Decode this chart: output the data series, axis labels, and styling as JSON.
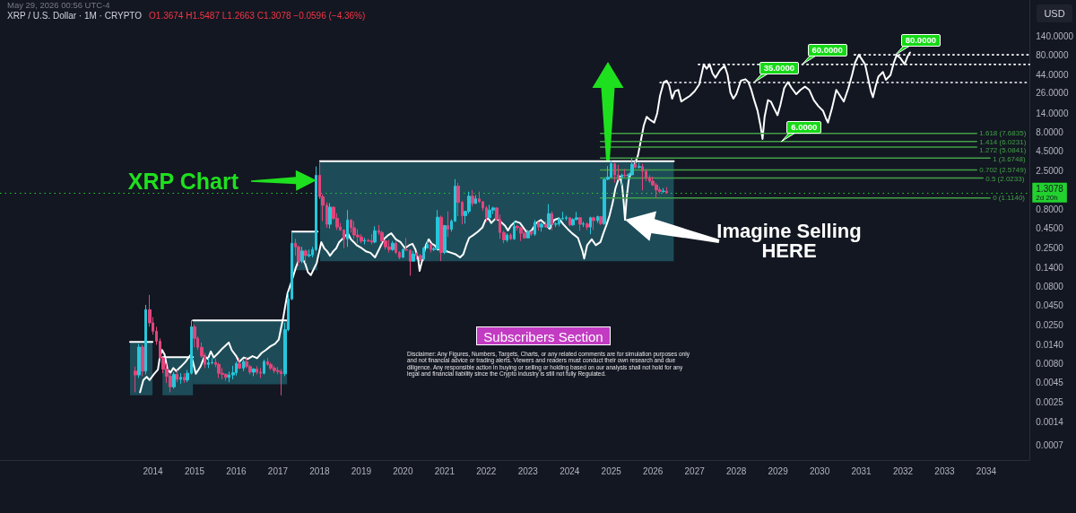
{
  "chart_data": {
    "type": "candlestick",
    "title": "XRP / U.S. Dollar · 1M · CRYPTO",
    "subtitle": "O1.3674 H1.5487 L1.2663 C1.3078 −0.0596 (−4.36%)",
    "ylabel": "USD",
    "x": [
      2013.58,
      2013.67,
      2013.75,
      2013.83,
      2013.92,
      2014.0,
      2014.08,
      2014.17,
      2014.25,
      2014.33,
      2014.42,
      2014.5,
      2014.58,
      2014.67,
      2014.75,
      2014.83,
      2014.92,
      2015.0,
      2015.08,
      2015.17,
      2015.25,
      2015.33,
      2015.42,
      2015.5,
      2015.58,
      2015.67,
      2015.75,
      2015.83,
      2015.92,
      2016.0,
      2016.08,
      2016.17,
      2016.25,
      2016.33,
      2016.42,
      2016.5,
      2016.58,
      2016.67,
      2016.75,
      2016.83,
      2016.92,
      2017.0,
      2017.08,
      2017.17,
      2017.25,
      2017.33,
      2017.42,
      2017.5,
      2017.58,
      2017.67,
      2017.75,
      2017.83,
      2017.92,
      2018.0,
      2018.08,
      2018.17,
      2018.25,
      2018.33,
      2018.42,
      2018.5,
      2018.58,
      2018.67,
      2018.75,
      2018.83,
      2018.92,
      2019.0,
      2019.08,
      2019.17,
      2019.25,
      2019.33,
      2019.42,
      2019.5,
      2019.58,
      2019.67,
      2019.75,
      2019.83,
      2019.92,
      2020.0,
      2020.08,
      2020.17,
      2020.25,
      2020.33,
      2020.42,
      2020.5,
      2020.58,
      2020.67,
      2020.75,
      2020.83,
      2020.92,
      2021.0,
      2021.08,
      2021.17,
      2021.25,
      2021.33,
      2021.42,
      2021.5,
      2021.58,
      2021.67,
      2021.75,
      2021.83,
      2021.92,
      2022.0,
      2022.08,
      2022.17,
      2022.25,
      2022.33,
      2022.42,
      2022.5,
      2022.58,
      2022.67,
      2022.75,
      2022.83,
      2022.92,
      2023.0,
      2023.08,
      2023.17,
      2023.25,
      2023.33,
      2023.42,
      2023.5,
      2023.58,
      2023.67,
      2023.75,
      2023.83,
      2023.92,
      2024.0,
      2024.08,
      2024.17,
      2024.25,
      2024.33,
      2024.42,
      2024.5,
      2024.58,
      2024.67,
      2024.75,
      2024.83,
      2024.92,
      2025.0,
      2025.08,
      2025.17,
      2025.25,
      2025.33,
      2025.42,
      2025.5,
      2025.58,
      2025.67,
      2025.75,
      2025.83,
      2025.92,
      2026.0,
      2026.08,
      2026.17,
      2026.25,
      2026.33
    ],
    "ohlc": [
      [
        0.0064,
        0.0073,
        0.0034,
        0.0057
      ],
      [
        0.0057,
        0.0144,
        0.0052,
        0.0131
      ],
      [
        0.0131,
        0.014,
        0.0055,
        0.0064
      ],
      [
        0.0064,
        0.046,
        0.0058,
        0.04
      ],
      [
        0.04,
        0.062,
        0.024,
        0.027
      ],
      [
        0.027,
        0.032,
        0.019,
        0.021
      ],
      [
        0.021,
        0.024,
        0.014,
        0.0156
      ],
      [
        0.0156,
        0.017,
        0.0092,
        0.0095
      ],
      [
        0.0095,
        0.0097,
        0.006,
        0.0068
      ],
      [
        0.0068,
        0.008,
        0.0045,
        0.0055
      ],
      [
        0.0055,
        0.006,
        0.0034,
        0.004
      ],
      [
        0.004,
        0.0062,
        0.0038,
        0.0058
      ],
      [
        0.0058,
        0.0066,
        0.0046,
        0.005
      ],
      [
        0.005,
        0.006,
        0.0044,
        0.0053
      ],
      [
        0.0053,
        0.006,
        0.0045,
        0.0049
      ],
      [
        0.0049,
        0.0066,
        0.0046,
        0.006
      ],
      [
        0.006,
        0.029,
        0.0058,
        0.024
      ],
      [
        0.024,
        0.0256,
        0.013,
        0.017
      ],
      [
        0.017,
        0.018,
        0.012,
        0.013
      ],
      [
        0.013,
        0.015,
        0.0095,
        0.01
      ],
      [
        0.01,
        0.011,
        0.007,
        0.0078
      ],
      [
        0.0078,
        0.0095,
        0.007,
        0.0082
      ],
      [
        0.0082,
        0.0094,
        0.0078,
        0.0083
      ],
      [
        0.0083,
        0.0093,
        0.0072,
        0.0078
      ],
      [
        0.0078,
        0.0082,
        0.0052,
        0.006
      ],
      [
        0.006,
        0.007,
        0.005,
        0.0058
      ],
      [
        0.0058,
        0.006,
        0.0048,
        0.0053
      ],
      [
        0.0053,
        0.0063,
        0.0046,
        0.0057
      ],
      [
        0.0057,
        0.0075,
        0.005,
        0.0061
      ],
      [
        0.0061,
        0.0085,
        0.0056,
        0.008
      ],
      [
        0.008,
        0.0095,
        0.0068,
        0.007
      ],
      [
        0.007,
        0.009,
        0.0064,
        0.0085
      ],
      [
        0.0085,
        0.0095,
        0.007,
        0.0073
      ],
      [
        0.0073,
        0.0077,
        0.0058,
        0.0062
      ],
      [
        0.0062,
        0.007,
        0.0055,
        0.0068
      ],
      [
        0.0068,
        0.0074,
        0.0058,
        0.0062
      ],
      [
        0.0062,
        0.007,
        0.0052,
        0.006
      ],
      [
        0.006,
        0.009,
        0.0058,
        0.0085
      ],
      [
        0.0085,
        0.0095,
        0.0075,
        0.0078
      ],
      [
        0.0078,
        0.0082,
        0.0066,
        0.007
      ],
      [
        0.007,
        0.0075,
        0.006,
        0.0065
      ],
      [
        0.0065,
        0.0072,
        0.0058,
        0.0063
      ],
      [
        0.0063,
        0.0068,
        0.0031,
        0.0059
      ],
      [
        0.0059,
        0.027,
        0.0055,
        0.022
      ],
      [
        0.022,
        0.067,
        0.021,
        0.055
      ],
      [
        0.055,
        0.41,
        0.053,
        0.29
      ],
      [
        0.29,
        0.33,
        0.2,
        0.26
      ],
      [
        0.26,
        0.27,
        0.15,
        0.17
      ],
      [
        0.17,
        0.26,
        0.16,
        0.23
      ],
      [
        0.23,
        0.24,
        0.16,
        0.2
      ],
      [
        0.2,
        0.24,
        0.19,
        0.205
      ],
      [
        0.205,
        0.26,
        0.19,
        0.24
      ],
      [
        0.24,
        2.86,
        0.23,
        2.2
      ],
      [
        2.2,
        3.31,
        1.08,
        1.16
      ],
      [
        1.16,
        1.25,
        0.56,
        0.9
      ],
      [
        0.9,
        0.98,
        0.46,
        0.51
      ],
      [
        0.51,
        0.96,
        0.45,
        0.85
      ],
      [
        0.85,
        0.87,
        0.58,
        0.61
      ],
      [
        0.61,
        0.71,
        0.43,
        0.47
      ],
      [
        0.47,
        0.53,
        0.42,
        0.43
      ],
      [
        0.43,
        0.44,
        0.25,
        0.33
      ],
      [
        0.33,
        0.78,
        0.26,
        0.58
      ],
      [
        0.58,
        0.59,
        0.4,
        0.46
      ],
      [
        0.46,
        0.56,
        0.33,
        0.37
      ],
      [
        0.37,
        0.44,
        0.29,
        0.35
      ],
      [
        0.35,
        0.38,
        0.29,
        0.31
      ],
      [
        0.31,
        0.34,
        0.28,
        0.315
      ],
      [
        0.315,
        0.33,
        0.3,
        0.31
      ],
      [
        0.31,
        0.38,
        0.28,
        0.3
      ],
      [
        0.3,
        0.48,
        0.29,
        0.42
      ],
      [
        0.42,
        0.5,
        0.37,
        0.4
      ],
      [
        0.4,
        0.42,
        0.29,
        0.31
      ],
      [
        0.31,
        0.33,
        0.24,
        0.26
      ],
      [
        0.26,
        0.32,
        0.22,
        0.24
      ],
      [
        0.24,
        0.31,
        0.23,
        0.29
      ],
      [
        0.29,
        0.31,
        0.21,
        0.22
      ],
      [
        0.22,
        0.23,
        0.18,
        0.19
      ],
      [
        0.19,
        0.25,
        0.19,
        0.24
      ],
      [
        0.24,
        0.34,
        0.23,
        0.235
      ],
      [
        0.235,
        0.24,
        0.11,
        0.17
      ],
      [
        0.17,
        0.23,
        0.17,
        0.21
      ],
      [
        0.21,
        0.22,
        0.18,
        0.2
      ],
      [
        0.2,
        0.21,
        0.17,
        0.18
      ],
      [
        0.18,
        0.26,
        0.17,
        0.25
      ],
      [
        0.25,
        0.32,
        0.25,
        0.28
      ],
      [
        0.28,
        0.29,
        0.22,
        0.24
      ],
      [
        0.24,
        0.26,
        0.23,
        0.245
      ],
      [
        0.245,
        0.78,
        0.24,
        0.63
      ],
      [
        0.63,
        0.66,
        0.17,
        0.22
      ],
      [
        0.22,
        0.5,
        0.21,
        0.49
      ],
      [
        0.49,
        0.75,
        0.35,
        0.44
      ],
      [
        0.44,
        0.59,
        0.41,
        0.56
      ],
      [
        0.56,
        1.96,
        0.55,
        1.59
      ],
      [
        1.59,
        1.75,
        0.65,
        0.98
      ],
      [
        0.98,
        1.03,
        0.51,
        0.66
      ],
      [
        0.66,
        0.76,
        0.52,
        0.75
      ],
      [
        0.75,
        1.35,
        0.7,
        1.18
      ],
      [
        1.18,
        1.41,
        0.87,
        0.95
      ],
      [
        0.95,
        1.22,
        0.94,
        1.09
      ],
      [
        1.09,
        1.35,
        0.96,
        1.0
      ],
      [
        1.0,
        1.02,
        0.76,
        0.83
      ],
      [
        0.83,
        0.88,
        0.55,
        0.62
      ],
      [
        0.62,
        0.91,
        0.6,
        0.78
      ],
      [
        0.78,
        0.86,
        0.69,
        0.83
      ],
      [
        0.83,
        0.84,
        0.58,
        0.59
      ],
      [
        0.59,
        0.68,
        0.33,
        0.4
      ],
      [
        0.4,
        0.42,
        0.29,
        0.32
      ],
      [
        0.32,
        0.39,
        0.3,
        0.37
      ],
      [
        0.37,
        0.39,
        0.32,
        0.33
      ],
      [
        0.33,
        0.56,
        0.32,
        0.48
      ],
      [
        0.48,
        0.5,
        0.42,
        0.46
      ],
      [
        0.46,
        0.47,
        0.31,
        0.39
      ],
      [
        0.39,
        0.41,
        0.33,
        0.34
      ],
      [
        0.34,
        0.43,
        0.34,
        0.41
      ],
      [
        0.41,
        0.42,
        0.36,
        0.38
      ],
      [
        0.38,
        0.58,
        0.36,
        0.54
      ],
      [
        0.54,
        0.55,
        0.42,
        0.47
      ],
      [
        0.47,
        0.54,
        0.41,
        0.51
      ],
      [
        0.51,
        0.56,
        0.46,
        0.47
      ],
      [
        0.47,
        0.93,
        0.46,
        0.7
      ],
      [
        0.7,
        0.75,
        0.43,
        0.51
      ],
      [
        0.51,
        0.54,
        0.47,
        0.515
      ],
      [
        0.515,
        0.62,
        0.48,
        0.6
      ],
      [
        0.6,
        0.74,
        0.58,
        0.61
      ],
      [
        0.61,
        0.66,
        0.57,
        0.62
      ],
      [
        0.62,
        0.63,
        0.48,
        0.5
      ],
      [
        0.5,
        0.61,
        0.49,
        0.59
      ],
      [
        0.59,
        0.74,
        0.57,
        0.62
      ],
      [
        0.62,
        0.63,
        0.42,
        0.51
      ],
      [
        0.51,
        0.55,
        0.47,
        0.515
      ],
      [
        0.515,
        0.54,
        0.43,
        0.47
      ],
      [
        0.47,
        0.64,
        0.38,
        0.62
      ],
      [
        0.62,
        0.64,
        0.43,
        0.57
      ],
      [
        0.57,
        0.66,
        0.53,
        0.64
      ],
      [
        0.64,
        0.64,
        0.5,
        0.52
      ],
      [
        0.52,
        1.97,
        0.5,
        1.95
      ],
      [
        1.95,
        2.9,
        1.9,
        2.08
      ],
      [
        2.08,
        3.4,
        2.05,
        3.1
      ],
      [
        3.1,
        3.2,
        1.77,
        2.22
      ],
      [
        2.22,
        3.0,
        1.9,
        2.09
      ],
      [
        2.09,
        2.3,
        1.61,
        2.21
      ],
      [
        2.21,
        2.65,
        2.08,
        2.17
      ],
      [
        2.17,
        2.34,
        1.9,
        2.23
      ],
      [
        2.23,
        3.67,
        2.2,
        3.06
      ],
      [
        3.06,
        3.38,
        2.7,
        2.8
      ],
      [
        2.8,
        3.18,
        2.69,
        2.85
      ],
      [
        2.85,
        3.1,
        1.4,
        2.48
      ],
      [
        2.48,
        2.65,
        1.85,
        2.05
      ],
      [
        2.05,
        2.2,
        1.75,
        1.85
      ],
      [
        1.85,
        2.1,
        1.6,
        1.65
      ],
      [
        1.65,
        1.75,
        1.114,
        1.42
      ],
      [
        1.42,
        1.55,
        1.28,
        1.36
      ],
      [
        1.36,
        1.5,
        1.3,
        1.3674
      ],
      [
        1.3674,
        1.5487,
        1.2663,
        1.3078
      ]
    ],
    "colors": [
      "#e0457b",
      "#26c6da",
      "#e0457b",
      "#26c6da",
      "#e0457b",
      "#e0457b",
      "#e0457b",
      "#e0457b",
      "#e0457b",
      "#e0457b",
      "#e0457b",
      "#26c6da",
      "#e0457b",
      "#26c6da",
      "#e0457b",
      "#26c6da",
      "#26c6da",
      "#e0457b",
      "#e0457b",
      "#e0457b",
      "#e0457b",
      "#26c6da",
      "#26c6da",
      "#e0457b",
      "#e0457b",
      "#e0457b",
      "#e0457b",
      "#26c6da",
      "#26c6da",
      "#26c6da",
      "#e0457b",
      "#26c6da",
      "#e0457b",
      "#e0457b",
      "#26c6da",
      "#e0457b",
      "#e0457b",
      "#26c6da",
      "#e0457b",
      "#e0457b",
      "#e0457b",
      "#e0457b",
      "#e0457b",
      "#26c6da",
      "#26c6da",
      "#26c6da",
      "#e0457b",
      "#e0457b",
      "#26c6da",
      "#e0457b",
      "#26c6da",
      "#26c6da",
      "#26c6da",
      "#e0457b",
      "#e0457b",
      "#e0457b",
      "#26c6da",
      "#e0457b",
      "#e0457b",
      "#e0457b",
      "#e0457b",
      "#26c6da",
      "#e0457b",
      "#e0457b",
      "#e0457b",
      "#e0457b",
      "#26c6da",
      "#e0457b",
      "#e0457b",
      "#26c6da",
      "#e0457b",
      "#e0457b",
      "#e0457b",
      "#e0457b",
      "#26c6da",
      "#e0457b",
      "#e0457b",
      "#26c6da",
      "#e0457b",
      "#e0457b",
      "#26c6da",
      "#e0457b",
      "#e0457b",
      "#26c6da",
      "#26c6da",
      "#e0457b",
      "#26c6da",
      "#26c6da",
      "#e0457b",
      "#26c6da",
      "#e0457b",
      "#26c6da",
      "#26c6da",
      "#e0457b",
      "#e0457b",
      "#26c6da",
      "#26c6da",
      "#e0457b",
      "#26c6da",
      "#e0457b",
      "#e0457b",
      "#e0457b",
      "#26c6da",
      "#26c6da",
      "#e0457b",
      "#e0457b",
      "#e0457b",
      "#26c6da",
      "#e0457b",
      "#26c6da",
      "#e0457b",
      "#e0457b",
      "#e0457b",
      "#26c6da",
      "#e0457b",
      "#26c6da",
      "#e0457b",
      "#26c6da",
      "#e0457b",
      "#26c6da",
      "#e0457b",
      "#26c6da",
      "#26c6da",
      "#26c6da",
      "#26c6da",
      "#e0457b",
      "#26c6da",
      "#26c6da",
      "#e0457b",
      "#26c6da",
      "#e0457b",
      "#26c6da",
      "#e0457b",
      "#26c6da",
      "#e0457b",
      "#26c6da",
      "#26c6da",
      "#26c6da",
      "#e0457b",
      "#e0457b",
      "#26c6da",
      "#e0457b",
      "#26c6da",
      "#26c6da",
      "#e0457b",
      "#26c6da",
      "#e0457b",
      "#e0457b",
      "#e0457b",
      "#e0457b",
      "#e0457b",
      "#e0457b",
      "#26c6da",
      "#e0457b"
    ],
    "series": [
      {
        "type": "line",
        "color": "#ffffff",
        "x": [
          2013.45,
          2013.99
        ],
        "values": [
          0.0153,
          0.0153
        ],
        "lower": [
          0.0031,
          0.0031
        ],
        "upper": [
          0.0153,
          0.0153
        ]
      },
      {
        "type": "line",
        "color": "#ffffff",
        "x": [
          2014.23,
          2014.96
        ],
        "values": [
          0.0097,
          0.0097
        ],
        "lower": [
          0.0031,
          0.0031
        ],
        "upper": [
          0.0097,
          0.0097
        ]
      },
      {
        "type": "line",
        "color": "#ffffff",
        "x": [
          2014.96,
          2017.22
        ],
        "values": [
          0.029,
          0.029
        ],
        "lower": [
          0.0043,
          0.0043
        ],
        "upper": [
          0.029,
          0.029
        ]
      },
      {
        "type": "line",
        "color": "#ffffff",
        "x": [
          2017.34,
          2017.95
        ],
        "values": [
          0.41,
          0.41
        ],
        "lower": [
          0.13,
          0.13
        ],
        "upper": [
          0.41,
          0.41
        ]
      },
      {
        "type": "line",
        "color": "#ffffff",
        "x": [
          2018.01,
          2026.5
        ],
        "values": [
          3.35,
          3.35
        ],
        "lower": [
          0.17,
          0.17
        ],
        "upper": [
          3.35,
          3.35
        ]
      },
      {
        "type": "line",
        "color": "#ffffff",
        "x": [
          2013.69,
          2013.77,
          2013.85,
          2013.92,
          2014.03,
          2014.12,
          2014.17,
          2014.22,
          2014.28,
          2014.35,
          2014.42,
          2014.49,
          2014.56,
          2014.67,
          2014.78,
          2014.91,
          2014.96,
          2015.03,
          2015.14,
          2015.24,
          2015.32,
          2015.39,
          2015.46,
          2015.57,
          2015.67,
          2015.82,
          2015.89,
          2016.0,
          2016.07,
          2016.18,
          2016.28,
          2016.39,
          2016.5,
          2016.61,
          2016.71,
          2016.82,
          2016.93,
          2017.02,
          2017.07,
          2017.13,
          2017.18,
          2017.23,
          2017.32,
          2017.43,
          2017.5,
          2017.57,
          2017.65,
          2017.72,
          2017.79,
          2017.86,
          2017.93,
          2018.04,
          2018.11,
          2018.18,
          2018.25,
          2018.33,
          2018.4,
          2018.47,
          2018.54,
          2018.61,
          2018.68,
          2018.75,
          2018.82,
          2018.89,
          2019.01,
          2019.11,
          2019.22,
          2019.33,
          2019.44,
          2019.54,
          2019.65,
          2019.72,
          2019.83,
          2019.94,
          2020.05,
          2020.15,
          2020.23,
          2020.3,
          2020.37,
          2020.4,
          2020.48,
          2020.55,
          2020.62,
          2020.69,
          2020.76,
          2020.83,
          2020.94,
          2021.05,
          2021.16,
          2021.26,
          2021.37,
          2021.45,
          2021.52,
          2021.59,
          2021.69,
          2021.8,
          2021.91,
          2021.98,
          2022.05,
          2022.12,
          2022.23,
          2022.34,
          2022.45,
          2022.52,
          2022.59,
          2022.7,
          2022.81,
          2022.91,
          2022.99,
          2023.09,
          2023.2,
          2023.31,
          2023.42,
          2023.52,
          2023.63,
          2023.74,
          2023.85,
          2023.95,
          2024.06,
          2024.2,
          2024.31,
          2024.35,
          2024.42,
          2024.53,
          2024.63,
          2024.74,
          2024.81,
          2024.89,
          2024.96,
          2025.03,
          2025.1,
          2025.17,
          2025.21,
          2025.26,
          2025.3,
          2025.33,
          2025.37,
          2025.42,
          2025.49,
          2025.56,
          2025.64,
          2025.71,
          2025.78,
          2025.85,
          2025.92,
          2026.03,
          2026.1,
          2026.17,
          2026.26,
          2026.33,
          2026.39,
          2026.46,
          2026.53,
          2026.61,
          2026.68,
          2026.78,
          2026.89,
          2027.0,
          2027.11,
          2027.22,
          2027.29,
          2027.36,
          2027.43,
          2027.5,
          2027.61,
          2027.72,
          2027.79,
          2027.86,
          2027.93,
          2028.0,
          2028.11,
          2028.22,
          2028.29,
          2028.36,
          2028.43,
          2028.51,
          2028.58,
          2028.63,
          2028.68,
          2028.76,
          2028.83,
          2028.9,
          2028.99,
          2029.06,
          2029.15,
          2029.24,
          2029.33,
          2029.44,
          2029.54,
          2029.65,
          2029.75,
          2029.86,
          2029.97,
          2030.08,
          2030.15,
          2030.2,
          2030.3,
          2030.4,
          2030.49,
          2030.58,
          2030.69,
          2030.78,
          2030.85,
          2030.94,
          2031.02,
          2031.09,
          2031.16,
          2031.23,
          2031.28,
          2031.35,
          2031.41,
          2031.52,
          2031.59,
          2031.7,
          2031.78,
          2031.85,
          2031.94,
          2032.04,
          2032.11,
          2032.17
        ],
        "values": [
          0.0034,
          0.0049,
          0.0054,
          0.0049,
          0.0059,
          0.0067,
          0.01,
          0.012,
          0.0105,
          0.0067,
          0.0061,
          0.007,
          0.0064,
          0.0073,
          0.0084,
          0.0105,
          0.0084,
          0.0059,
          0.0073,
          0.01,
          0.0092,
          0.0115,
          0.0096,
          0.011,
          0.0126,
          0.015,
          0.012,
          0.01,
          0.0084,
          0.0096,
          0.0092,
          0.01,
          0.0094,
          0.011,
          0.012,
          0.0134,
          0.0144,
          0.0164,
          0.0224,
          0.032,
          0.046,
          0.065,
          0.09,
          0.14,
          0.175,
          0.19,
          0.16,
          0.122,
          0.112,
          0.134,
          0.16,
          0.3,
          0.25,
          0.228,
          0.2,
          0.228,
          0.25,
          0.3,
          0.326,
          0.357,
          0.39,
          0.326,
          0.3,
          0.273,
          0.25,
          0.228,
          0.218,
          0.19,
          0.25,
          0.326,
          0.37,
          0.39,
          0.326,
          0.3,
          0.25,
          0.273,
          0.285,
          0.24,
          0.175,
          0.127,
          0.19,
          0.273,
          0.326,
          0.285,
          0.273,
          0.24,
          0.25,
          0.228,
          0.218,
          0.209,
          0.19,
          0.209,
          0.273,
          0.34,
          0.37,
          0.41,
          0.466,
          0.58,
          0.61,
          0.53,
          0.61,
          0.556,
          0.487,
          0.425,
          0.487,
          0.556,
          0.53,
          0.445,
          0.39,
          0.425,
          0.53,
          0.58,
          0.51,
          0.445,
          0.58,
          0.61,
          0.51,
          0.445,
          0.39,
          0.34,
          0.228,
          0.183,
          0.273,
          0.326,
          0.273,
          0.3,
          0.39,
          0.51,
          0.666,
          0.95,
          1.49,
          1.94,
          2.12,
          1.62,
          0.95,
          0.58,
          1.14,
          1.94,
          2.54,
          3.04,
          3.97,
          6.2,
          9.7,
          12.6,
          11.6,
          10.6,
          13.8,
          23.6,
          35.4,
          36.9,
          32.2,
          21.6,
          27,
          28.1,
          19.8,
          21.6,
          23.6,
          27,
          33,
          60,
          52.7,
          60.3,
          46.1,
          40.4,
          50.5,
          57.8,
          44.2,
          25.9,
          21.6,
          24.7,
          36.9,
          38.6,
          35.4,
          28.1,
          20.7,
          15.1,
          9.7,
          6.5,
          12.6,
          20.7,
          19.8,
          16.5,
          13.2,
          18.1,
          29.6,
          35.4,
          29.6,
          24.7,
          28.1,
          30.9,
          28.1,
          20.7,
          17.3,
          15.1,
          12.1,
          10.6,
          16.5,
          28.1,
          23.6,
          19.8,
          29.6,
          44.2,
          63.1,
          80,
          68.9,
          60.3,
          40.4,
          27,
          22.6,
          32.2,
          41.7,
          47.9,
          37.9,
          43.6,
          63.1,
          79.4,
          72.4,
          60.3,
          75.9,
          85.7
        ]
      },
      {
        "type": "line",
        "name": "1.618 (7.6835)",
        "color": "#43a047",
        "x": [
          2024.74,
          2033.77
        ],
        "values": [
          7.6835,
          7.6835
        ]
      },
      {
        "type": "line",
        "name": "1.414 (6.0231)",
        "color": "#43a047",
        "x": [
          2024.74,
          2033.77
        ],
        "values": [
          6.0231,
          6.0231
        ]
      },
      {
        "type": "line",
        "name": "1.272 (5.0841)",
        "color": "#43a047",
        "x": [
          2024.74,
          2033.77
        ],
        "values": [
          5.0841,
          5.0841
        ]
      },
      {
        "type": "line",
        "name": "1 (3.6748)",
        "color": "#43a047",
        "x": [
          2024.74,
          2034.09
        ],
        "values": [
          3.6748,
          3.6748
        ]
      },
      {
        "type": "line",
        "name": "0.702 (2.5749)",
        "color": "#43a047",
        "x": [
          2024.74,
          2033.77
        ],
        "values": [
          2.5749,
          2.5749
        ]
      },
      {
        "type": "line",
        "name": "0.5 (2.0233)",
        "color": "#43a047",
        "x": [
          2024.74,
          2033.92
        ],
        "values": [
          2.0233,
          2.0233
        ]
      },
      {
        "type": "line",
        "name": "0 (1.1140)",
        "color": "#43a047",
        "x": [
          2024.74,
          2034.09
        ],
        "values": [
          1.114,
          1.114
        ]
      },
      {
        "type": "line",
        "color": "#ffffff",
        "line_style": "dotted",
        "x": [
          2026.17,
          2035.04
        ],
        "values": [
          35,
          35
        ]
      },
      {
        "type": "line",
        "color": "#ffffff",
        "line_style": "dotted",
        "x": [
          2027.09,
          2035.04
        ],
        "values": [
          60,
          60
        ]
      },
      {
        "type": "line",
        "color": "#ffffff",
        "line_style": "dotted",
        "x": [
          2030.83,
          2035.04
        ],
        "values": [
          80,
          80
        ]
      }
    ],
    "xlim": [
      2010.33,
      2035.04
    ],
    "xticks": [
      2014,
      2015,
      2016,
      2017,
      2018,
      2019,
      2020,
      2021,
      2022,
      2023,
      2024,
      2025,
      2026,
      2027,
      2028,
      2029,
      2030,
      2031,
      2032,
      2033,
      2034
    ],
    "ylim": [
      0.00045,
      410
    ],
    "yticks": [
      {
        "value": 140,
        "label": "140.0000"
      },
      {
        "value": 80,
        "label": "80.0000"
      },
      {
        "value": 44,
        "label": "44.0000"
      },
      {
        "value": 26,
        "label": "26.0000"
      },
      {
        "value": 14,
        "label": "14.0000"
      },
      {
        "value": 8,
        "label": "8.0000"
      },
      {
        "value": 4.5,
        "label": "4.5000"
      },
      {
        "value": 2.5,
        "label": "2.5000"
      },
      {
        "value": 0.8,
        "label": "0.8000"
      },
      {
        "value": 0.45,
        "label": "0.4500"
      },
      {
        "value": 0.25,
        "label": "0.2500"
      },
      {
        "value": 0.14,
        "label": "0.1400"
      },
      {
        "value": 0.08,
        "label": "0.0800"
      },
      {
        "value": 0.045,
        "label": "0.0450"
      },
      {
        "value": 0.025,
        "label": "0.0250"
      },
      {
        "value": 0.014,
        "label": "0.0140"
      },
      {
        "value": 0.008,
        "label": "0.0080"
      },
      {
        "value": 0.0045,
        "label": "0.0045"
      },
      {
        "value": 0.0025,
        "label": "0.0025"
      },
      {
        "value": 0.0014,
        "label": "0.0014"
      },
      {
        "value": 0.0007,
        "label": "0.0007"
      }
    ],
    "log": true,
    "ref_lines": [
      {
        "axis": "y",
        "value": 1.3078,
        "label": "1.3078",
        "color": "#22d12e",
        "line_style": "dotted"
      }
    ],
    "annotations": [
      "May 29, 2026 00:56 UTC-4",
      "XRP Chart",
      "Imagine Selling HERE",
      {
        "text": "35.0000",
        "x": 2028.42,
        "y": 35
      },
      {
        "text": "60.0000",
        "x": 2029.58,
        "y": 60
      },
      {
        "text": "6.0000",
        "x": 2029.08,
        "y": 6
      },
      {
        "text": "80.0000",
        "x": 2031.82,
        "y": 80
      },
      "Subscribers Section",
      "Disclaimer: Any Figures, Numbers, Targets, Charts, or any related comments are for simulation purposes only and not financial advice or trading alerts. Viewers and readers must conduct their own research and due diligence. Any responsible action in buying or selling or holding based on our analysis shall not hold for any legal and financial liability since the Crypto industry is still not fully Regulated.",
      "2d 20h"
    ]
  }
}
